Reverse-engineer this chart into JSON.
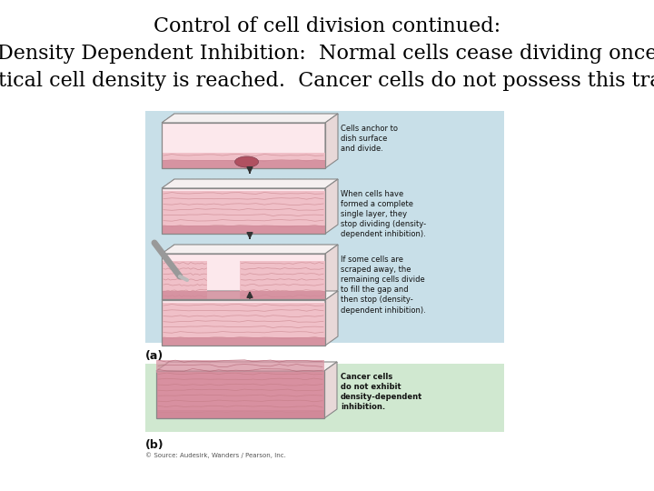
{
  "title_line1": "Control of cell division continued:",
  "title_line2": "Density Dependent Inhibition:  Normal cells cease dividing once",
  "title_line3": "critical cell density is reached.  Cancer cells do not possess this trait.",
  "background_color": "#ffffff",
  "title_fontsize": 16,
  "title_color": "#000000",
  "panel_a_bg": "#c8dfe8",
  "panel_b_bg": "#d0e8d0",
  "label_a": "(a)",
  "label_b": "(b)",
  "caption": "© Source: Audesirk, Wanders / Pearson, Inc.",
  "cell_pink_light": "#f0c0c8",
  "cell_pink_dark": "#d08090",
  "cell_line": "#c07080",
  "tray_edge": "#888888",
  "tray_fill_light": "#fce8ec",
  "anno_texts": [
    "Cells anchor to\ndish surface\nand divide.",
    "When cells have\nformed a complete\nsingle layer, they\nstop dividing (density-\ndependent inhibition).",
    "If some cells are\nscraped away, the\nremaining cells divide\nto fill the gap and\nthen stop (density-\ndependent inhibition)."
  ],
  "cancer_text": "Cancer cells\ndo not exhibit\ndensity-dependent\ninhibition."
}
